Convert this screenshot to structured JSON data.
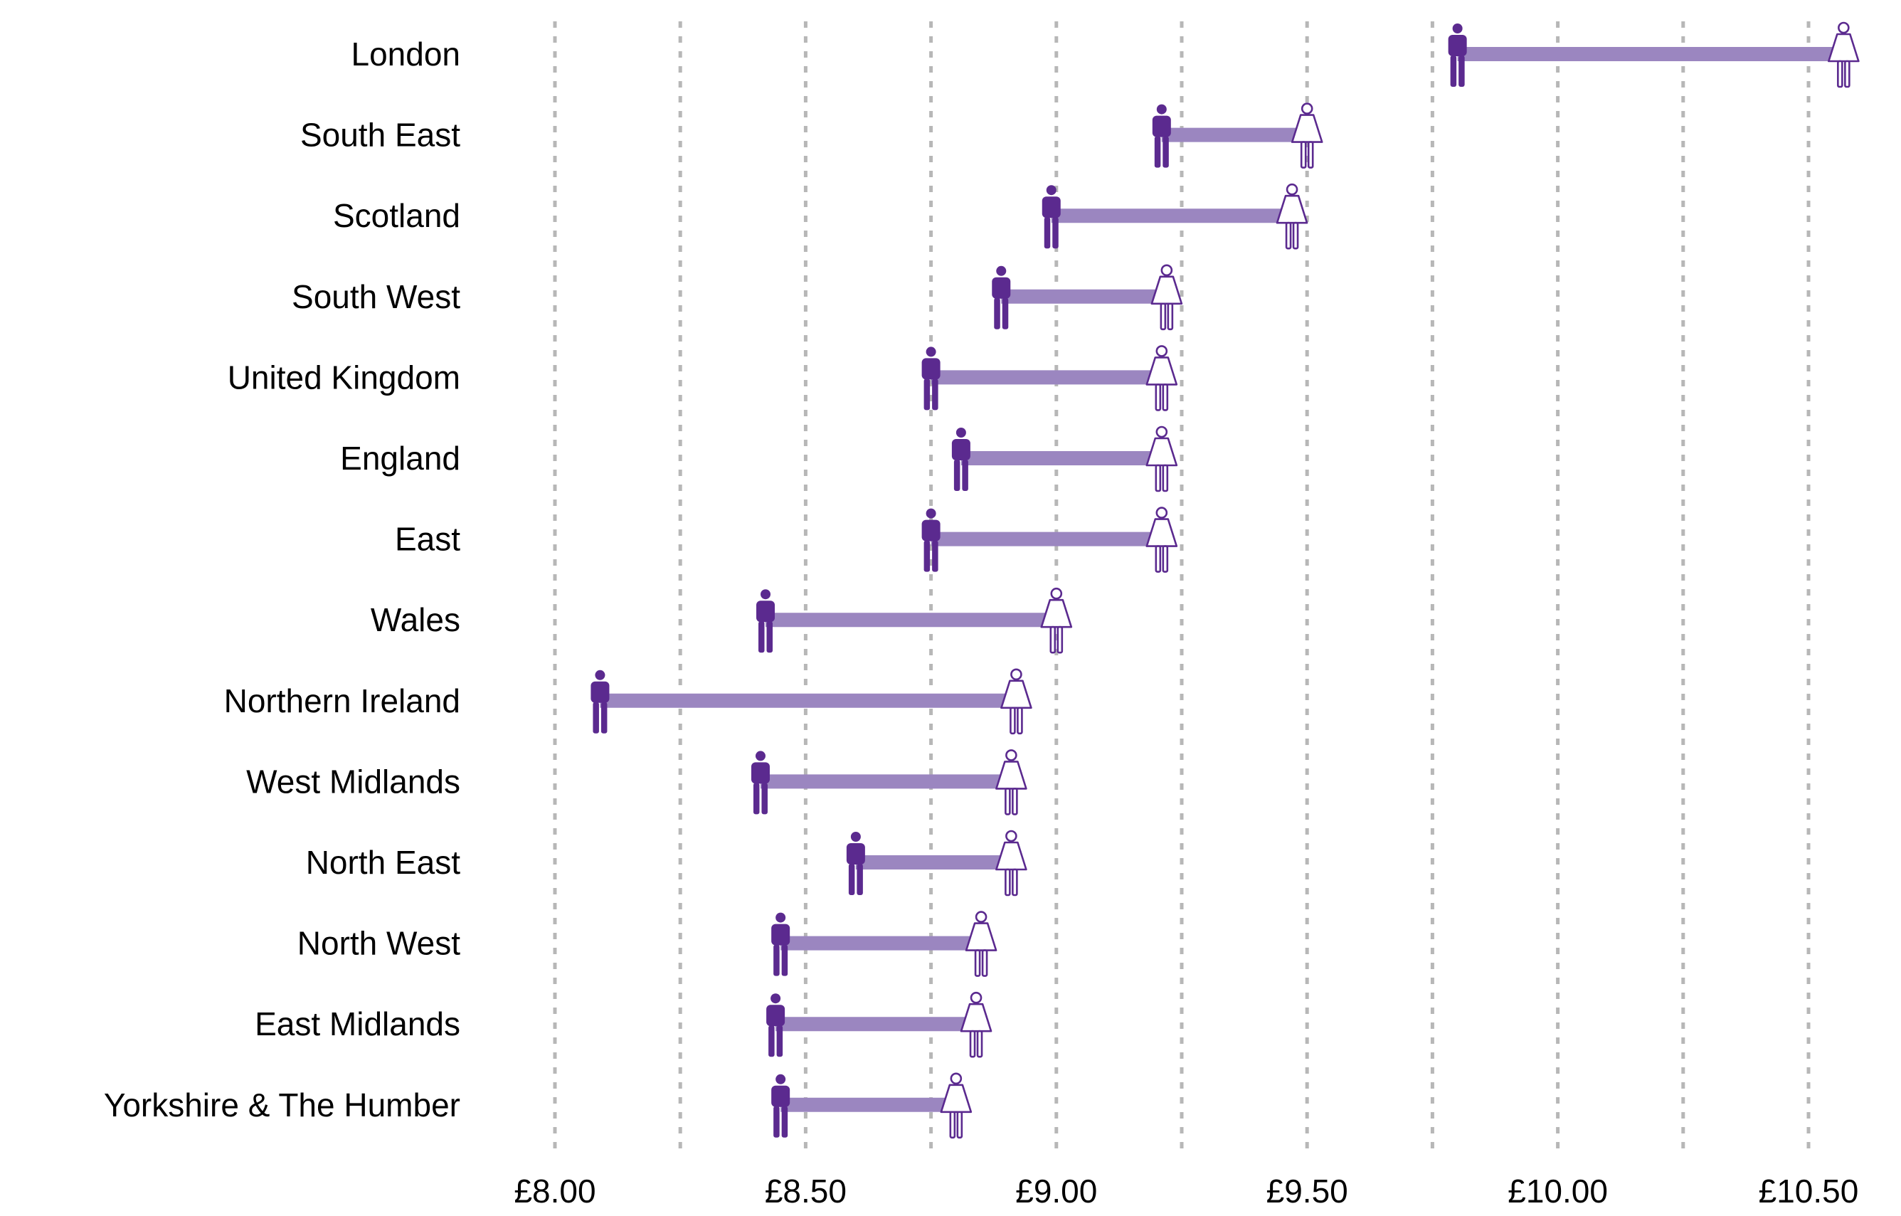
{
  "chart_data": {
    "type": "dumbbell",
    "xlim": [
      8.0,
      10.5
    ],
    "ticks": [
      8.0,
      8.5,
      9.0,
      9.5,
      10.0,
      10.5
    ],
    "tick_labels": [
      "£8.00",
      "£8.50",
      "£9.00",
      "£9.50",
      "£10.00",
      "£10.50"
    ],
    "gridlines": [
      8.0,
      8.25,
      8.5,
      8.75,
      9.0,
      9.25,
      9.5,
      9.75,
      10.0,
      10.25,
      10.5
    ],
    "grid": true,
    "series": [
      {
        "icon": "man-icon",
        "marker": "filled"
      },
      {
        "icon": "woman-icon",
        "marker": "outline"
      }
    ],
    "colors": {
      "man": "#5b2a8f",
      "woman_outline": "#5b2a8f",
      "bar": "#9b86c0"
    },
    "rows": [
      {
        "region": "London",
        "man": 9.8,
        "woman": 10.57
      },
      {
        "region": "South East",
        "man": 9.21,
        "woman": 9.5
      },
      {
        "region": "Scotland",
        "man": 8.99,
        "woman": 9.47
      },
      {
        "region": "South West",
        "man": 8.89,
        "woman": 9.22
      },
      {
        "region": "United Kingdom",
        "man": 8.75,
        "woman": 9.21
      },
      {
        "region": "England",
        "man": 8.81,
        "woman": 9.21
      },
      {
        "region": "East",
        "man": 8.75,
        "woman": 9.21
      },
      {
        "region": "Wales",
        "man": 8.42,
        "woman": 9.0
      },
      {
        "region": "Northern Ireland",
        "man": 8.09,
        "woman": 8.92
      },
      {
        "region": "West Midlands",
        "man": 8.41,
        "woman": 8.91
      },
      {
        "region": "North East",
        "man": 8.6,
        "woman": 8.91
      },
      {
        "region": "North West",
        "man": 8.45,
        "woman": 8.85
      },
      {
        "region": "East Midlands",
        "man": 8.44,
        "woman": 8.84
      },
      {
        "region": "Yorkshire & The Humber",
        "man": 8.45,
        "woman": 8.8
      }
    ]
  }
}
